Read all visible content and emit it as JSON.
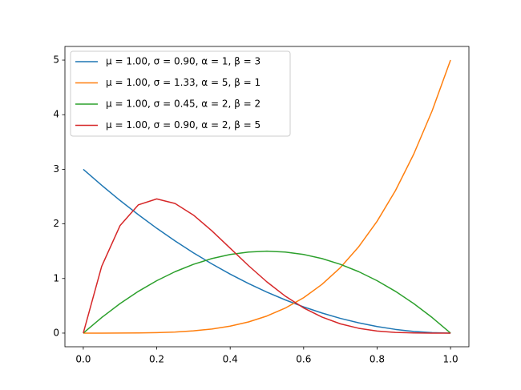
{
  "chart_data": {
    "type": "line",
    "x": [
      0,
      0.05,
      0.1,
      0.15,
      0.2,
      0.25,
      0.3,
      0.35,
      0.4,
      0.45,
      0.5,
      0.55,
      0.6,
      0.65,
      0.7,
      0.75,
      0.8,
      0.85,
      0.9,
      0.95,
      1
    ],
    "series": [
      {
        "name": "μ = 1.00,  σ = 0.90,  α = 1,  β = 3",
        "color": "#1f77b4",
        "values": [
          3,
          2.708,
          2.43,
          2.168,
          1.92,
          1.688,
          1.47,
          1.268,
          1.08,
          0.908,
          0.75,
          0.608,
          0.48,
          0.368,
          0.27,
          0.188,
          0.12,
          0.068,
          0.03,
          0.008,
          0
        ]
      },
      {
        "name": "μ = 1.00,  σ = 1.33,  α = 5,  β = 1",
        "color": "#ff7f0e",
        "values": [
          0,
          0,
          0.001,
          0.003,
          0.008,
          0.02,
          0.041,
          0.075,
          0.128,
          0.205,
          0.313,
          0.458,
          0.648,
          0.893,
          1.2,
          1.582,
          2.048,
          2.61,
          3.281,
          4.073,
          5
        ]
      },
      {
        "name": "μ = 1.00,  σ = 0.45,  α = 2,  β = 2",
        "color": "#2ca02c",
        "values": [
          0,
          0.285,
          0.54,
          0.765,
          0.96,
          1.125,
          1.26,
          1.365,
          1.44,
          1.485,
          1.5,
          1.485,
          1.44,
          1.365,
          1.26,
          1.125,
          0.96,
          0.765,
          0.54,
          0.285,
          0
        ]
      },
      {
        "name": "μ = 1.00,  σ = 0.90,  α = 2,  β = 5",
        "color": "#d62728",
        "values": [
          0,
          1.222,
          1.968,
          2.349,
          2.458,
          2.373,
          2.161,
          1.874,
          1.555,
          1.235,
          0.938,
          0.677,
          0.461,
          0.293,
          0.17,
          0.088,
          0.038,
          0.013,
          0.003,
          0,
          0
        ]
      }
    ],
    "xlim": [
      -0.05,
      1.05
    ],
    "ylim": [
      -0.25,
      5.25
    ],
    "xticks": [
      {
        "value": 0,
        "label": "0.0"
      },
      0.2,
      0.4,
      0.6,
      0.8,
      {
        "value": 1,
        "label": "1.0"
      }
    ],
    "yticks": [
      0,
      1,
      2,
      3,
      4,
      5
    ],
    "legend": "upper-left"
  }
}
